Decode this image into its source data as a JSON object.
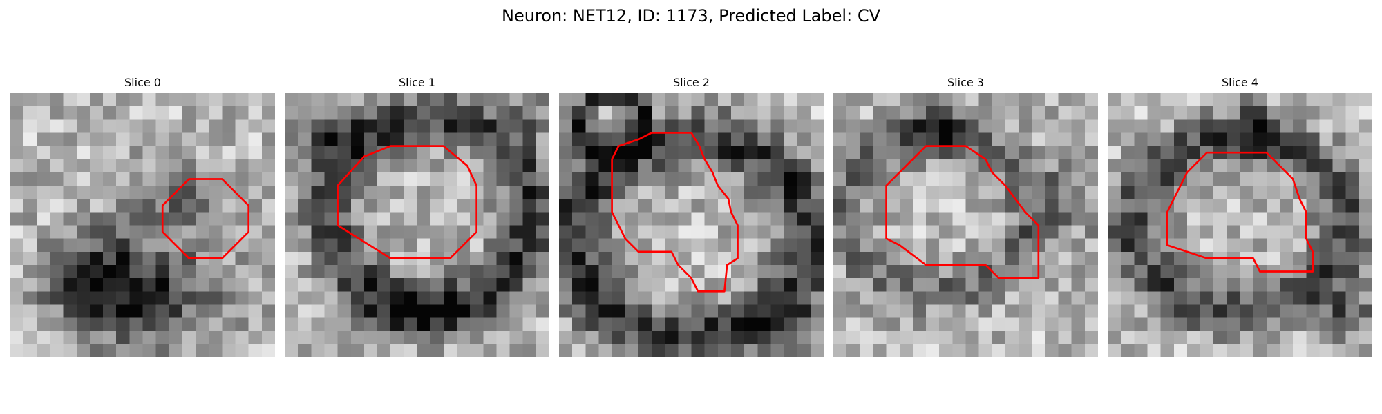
{
  "figure": {
    "title": "Neuron: NET12, ID: 1173, Predicted Label: CV"
  },
  "contour_color": "#ff0000",
  "panels": [
    {
      "title": "Slice 0",
      "seed": 11,
      "dark_regions": [
        {
          "cx": 10,
          "cy": 15,
          "rx": 7,
          "ry": 4.5,
          "depth": 0.9
        },
        {
          "cx": 6,
          "cy": 14,
          "rx": 3.5,
          "ry": 3.5,
          "depth": 0.7
        },
        {
          "cx": 12,
          "cy": 8,
          "rx": 5,
          "ry": 3,
          "depth": 0.5
        }
      ],
      "contour": [
        [
          13.5,
          6.5
        ],
        [
          16,
          6.5
        ],
        [
          18,
          8.5
        ],
        [
          18,
          10.5
        ],
        [
          16,
          12.5
        ],
        [
          13.5,
          12.5
        ],
        [
          11.5,
          10.5
        ],
        [
          11.5,
          8.5
        ]
      ]
    },
    {
      "title": "Slice 1",
      "seed": 23,
      "dark_regions": [
        {
          "cx": 11,
          "cy": 9,
          "rx": 7.5,
          "ry": 7,
          "ring": true,
          "depth": 0.8
        },
        {
          "cx": 3.5,
          "cy": 3,
          "rx": 2.8,
          "ry": 2.5,
          "depth": 0.7
        },
        {
          "cx": 10,
          "cy": 17,
          "rx": 6,
          "ry": 2,
          "depth": 0.6
        },
        {
          "cx": 19,
          "cy": 2,
          "rx": 3,
          "ry": 2,
          "depth": 0.4
        }
      ],
      "contour": [
        [
          8,
          4
        ],
        [
          12,
          4
        ],
        [
          13.8,
          5.5
        ],
        [
          14.5,
          7
        ],
        [
          14.5,
          10.5
        ],
        [
          12.5,
          12.5
        ],
        [
          8,
          12.5
        ],
        [
          4,
          10
        ],
        [
          4,
          7
        ],
        [
          6,
          4.8
        ]
      ]
    },
    {
      "title": "Slice 2",
      "seed": 37,
      "dark_regions": [
        {
          "cx": 10,
          "cy": 11,
          "rx": 9,
          "ry": 7.5,
          "ring": true,
          "depth": 0.85
        },
        {
          "cx": 4,
          "cy": 2.5,
          "rx": 2.5,
          "ry": 2.5,
          "ring": true,
          "depth": 0.8
        },
        {
          "cx": 17,
          "cy": 18,
          "rx": 4,
          "ry": 2,
          "depth": 0.5
        }
      ],
      "contour": [
        [
          7,
          3
        ],
        [
          10,
          3
        ],
        [
          10.6,
          4
        ],
        [
          11,
          5
        ],
        [
          11.6,
          6
        ],
        [
          12,
          7
        ],
        [
          12.8,
          8
        ],
        [
          13,
          9
        ],
        [
          13.5,
          10
        ],
        [
          13.5,
          12.5
        ],
        [
          12.7,
          13
        ],
        [
          12.5,
          15
        ],
        [
          10.5,
          15
        ],
        [
          10,
          14
        ],
        [
          9,
          13
        ],
        [
          8.5,
          12
        ],
        [
          6,
          12
        ],
        [
          5,
          11
        ],
        [
          4.5,
          10
        ],
        [
          4,
          9
        ],
        [
          4,
          5
        ],
        [
          4.5,
          4
        ],
        [
          6,
          3.5
        ]
      ]
    },
    {
      "title": "Slice 3",
      "seed": 53,
      "dark_regions": [
        {
          "cx": 8,
          "cy": 3,
          "rx": 2.5,
          "ry": 2.5,
          "depth": 0.7
        },
        {
          "cx": 8,
          "cy": 9,
          "rx": 7,
          "ry": 6,
          "ring": true,
          "depth": 0.5
        },
        {
          "cx": 18,
          "cy": 8,
          "rx": 3,
          "ry": 4,
          "depth": 0.35
        }
      ],
      "contour": [
        [
          7,
          4
        ],
        [
          10,
          4
        ],
        [
          11.5,
          5
        ],
        [
          12,
          6
        ],
        [
          13,
          7
        ],
        [
          14.5,
          9
        ],
        [
          15.5,
          10
        ],
        [
          15.5,
          14
        ],
        [
          12.5,
          14
        ],
        [
          11.5,
          13
        ],
        [
          7,
          13
        ],
        [
          5,
          11.5
        ],
        [
          4,
          11
        ],
        [
          4,
          7
        ],
        [
          5.5,
          5.5
        ],
        [
          6,
          5
        ]
      ]
    },
    {
      "title": "Slice 4",
      "seed": 71,
      "dark_regions": [
        {
          "cx": 10,
          "cy": 10,
          "rx": 8,
          "ry": 6.5,
          "ring": true,
          "depth": 0.7
        },
        {
          "cx": 18,
          "cy": 17,
          "rx": 2.5,
          "ry": 2.5,
          "depth": 0.6
        },
        {
          "cx": 11,
          "cy": 2.5,
          "rx": 3,
          "ry": 2,
          "depth": 0.5
        }
      ],
      "contour": [
        [
          7.5,
          4.5
        ],
        [
          12,
          4.5
        ],
        [
          13,
          5.5
        ],
        [
          14,
          6.5
        ],
        [
          14.5,
          8
        ],
        [
          15,
          9
        ],
        [
          15,
          11
        ],
        [
          15.5,
          12
        ],
        [
          15.5,
          13.5
        ],
        [
          11.5,
          13.5
        ],
        [
          11,
          12.5
        ],
        [
          7.5,
          12.5
        ],
        [
          6,
          12
        ],
        [
          4.5,
          11.5
        ],
        [
          4.5,
          9
        ],
        [
          5,
          8
        ],
        [
          5.5,
          7
        ],
        [
          6,
          6
        ],
        [
          6.5,
          5.5
        ]
      ]
    }
  ]
}
